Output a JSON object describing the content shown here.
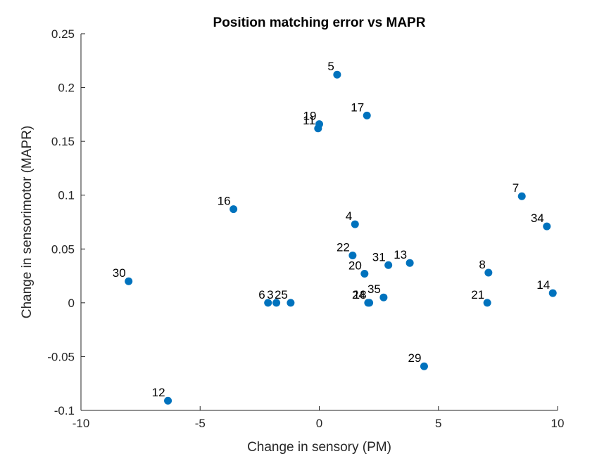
{
  "chart_data": {
    "type": "scatter",
    "title": "Position matching error vs MAPR",
    "xlabel": "Change in sensory (PM)",
    "ylabel": "Change in sensorimotor (MAPR)",
    "xlim": [
      -10,
      10
    ],
    "ylim": [
      -0.1,
      0.25
    ],
    "xticks": [
      -10,
      -5,
      0,
      5,
      10
    ],
    "xtick_labels": [
      "-10",
      "-5",
      "0",
      "5",
      "10"
    ],
    "yticks": [
      -0.1,
      -0.05,
      0,
      0.05,
      0.1,
      0.15,
      0.2,
      0.25
    ],
    "ytick_labels": [
      "-0.1",
      "-0.05",
      "0",
      "0.05",
      "0.1",
      "0.15",
      "0.2",
      "0.25"
    ],
    "grid": false,
    "marker_color": "#0072BD",
    "points": [
      {
        "label": "5",
        "x": 0.75,
        "y": 0.212
      },
      {
        "label": "19",
        "x": 0.0,
        "y": 0.166
      },
      {
        "label": "11",
        "x": -0.05,
        "y": 0.162
      },
      {
        "label": "17",
        "x": 2.0,
        "y": 0.174
      },
      {
        "label": "7",
        "x": 8.5,
        "y": 0.099
      },
      {
        "label": "16",
        "x": -3.6,
        "y": 0.087
      },
      {
        "label": "4",
        "x": 1.5,
        "y": 0.073
      },
      {
        "label": "34",
        "x": 9.55,
        "y": 0.071
      },
      {
        "label": "22",
        "x": 1.4,
        "y": 0.044
      },
      {
        "label": "13",
        "x": 3.8,
        "y": 0.037
      },
      {
        "label": "31",
        "x": 2.9,
        "y": 0.035
      },
      {
        "label": "8",
        "x": 7.1,
        "y": 0.028
      },
      {
        "label": "20",
        "x": 1.9,
        "y": 0.027
      },
      {
        "label": "30",
        "x": -8.0,
        "y": 0.02
      },
      {
        "label": "14",
        "x": 9.8,
        "y": 0.009
      },
      {
        "label": "35",
        "x": 2.7,
        "y": 0.005
      },
      {
        "label": "6",
        "x": -2.15,
        "y": 0.0
      },
      {
        "label": "3",
        "x": -1.8,
        "y": 0.0
      },
      {
        "label": "25",
        "x": -1.2,
        "y": 0.0
      },
      {
        "label": "24",
        "x": 2.05,
        "y": 0.0
      },
      {
        "label": "18",
        "x": 2.1,
        "y": 0.0
      },
      {
        "label": "21",
        "x": 7.05,
        "y": 0.0
      },
      {
        "label": "29",
        "x": 4.4,
        "y": -0.059
      },
      {
        "label": "12",
        "x": -6.35,
        "y": -0.091
      }
    ]
  }
}
